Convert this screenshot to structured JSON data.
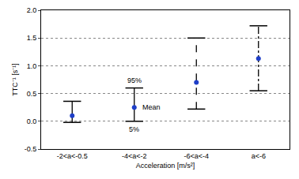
{
  "chart_data": {
    "type": "errorbar",
    "x_label": "Acceleration [m/s²]",
    "y_label": "TTC⁻¹ [s⁻¹]",
    "categories": [
      "-2<a<-0.5",
      "-4<a<-2",
      "-6<a<-4",
      "a<-6"
    ],
    "series": [
      {
        "values": [
          0.1,
          null,
          null,
          null
        ],
        "low": [
          -0.02,
          null,
          null,
          null
        ],
        "high": [
          0.36,
          null,
          null,
          null
        ],
        "line_style": "solid"
      },
      {
        "values": [
          null,
          0.25,
          null,
          null
        ],
        "low": [
          null,
          0.0,
          null,
          null
        ],
        "high": [
          null,
          0.6,
          null,
          null
        ],
        "line_style": "solid"
      },
      {
        "values": [
          null,
          null,
          0.7,
          null
        ],
        "low": [
          null,
          null,
          0.22,
          null
        ],
        "high": [
          null,
          null,
          1.5,
          null
        ],
        "line_style": "dash"
      },
      {
        "values": [
          null,
          null,
          null,
          1.13
        ],
        "low": [
          null,
          null,
          null,
          0.55
        ],
        "high": [
          null,
          null,
          null,
          1.72
        ],
        "line_style": "dashdot"
      }
    ],
    "color": "#1f3fc8",
    "marker": "circle",
    "annotations": [
      {
        "text": "95%",
        "category": "-4<a<-2",
        "anchor": "high"
      },
      {
        "text": "Mean",
        "category": "-4<a<-2",
        "anchor": "values"
      },
      {
        "text": "5%",
        "category": "-4<a<-2",
        "anchor": "low"
      }
    ],
    "ylim": [
      -0.5,
      2.0
    ],
    "yticks": [
      -0.5,
      {
        "value": 0,
        "label": "0.0"
      },
      0.5,
      {
        "value": 1,
        "label": "1.0"
      },
      1.5,
      {
        "value": 2,
        "label": "2.0"
      }
    ],
    "grid": true
  }
}
